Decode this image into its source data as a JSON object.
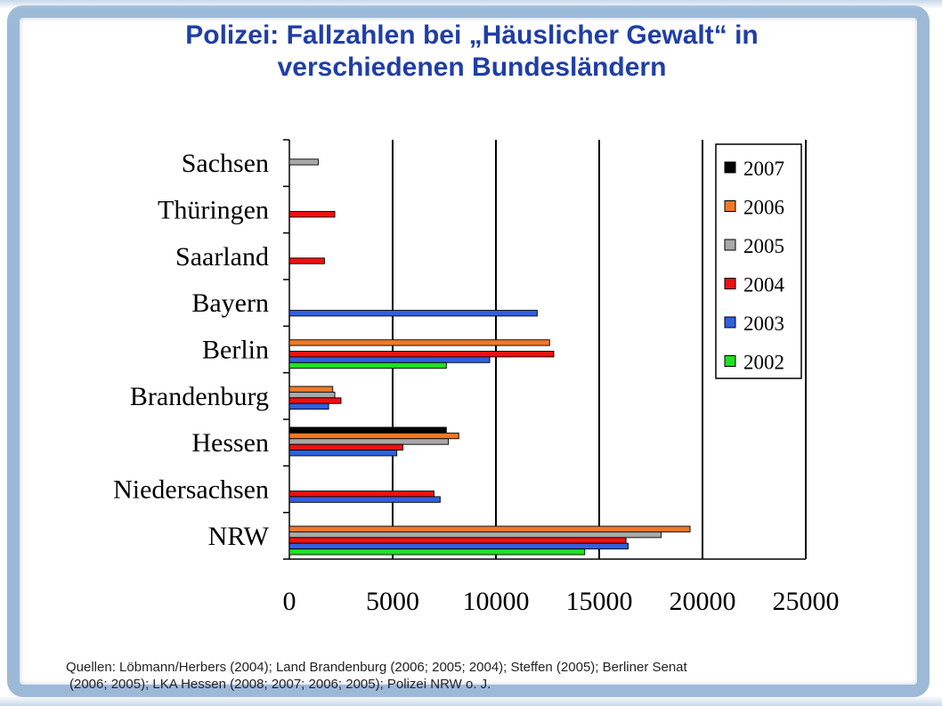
{
  "slide": {
    "title_line1": "Polizei: Fallzahlen bei „Häuslicher Gewalt“ in",
    "title_line2": "verschiedenen Bundesländern",
    "source_line1": "Quellen: Löbmann/Herbers (2004); Land Brandenburg (2006; 2005; 2004); Steffen (2005); Berliner Senat",
    "source_line2": "(2006; 2005); LKA Hessen (2008; 2007; 2006; 2005); Polizei NRW o. J."
  },
  "chart_data": {
    "type": "bar",
    "orientation": "horizontal",
    "title": "",
    "xlabel": "",
    "ylabel": "",
    "xlim": [
      0,
      25000
    ],
    "x_ticks": [
      0,
      5000,
      10000,
      15000,
      20000,
      25000
    ],
    "x_tick_labels": [
      "0",
      "5000",
      "10000",
      "15000",
      "20000",
      "25000"
    ],
    "grid": "vertical major gridlines",
    "legend_position": "top-right",
    "categories": [
      "Sachsen",
      "Thüringen",
      "Saarland",
      "Bayern",
      "Berlin",
      "Brandenburg",
      "Hessen",
      "Niedersachsen",
      "NRW"
    ],
    "series": [
      {
        "name": "2007",
        "color": "#000000",
        "values": [
          null,
          null,
          null,
          null,
          null,
          null,
          7600,
          null,
          null
        ]
      },
      {
        "name": "2006",
        "color": "#f07828",
        "values": [
          null,
          null,
          null,
          null,
          12600,
          2100,
          8200,
          null,
          19400
        ]
      },
      {
        "name": "2005",
        "color": "#a8a8a8",
        "values": [
          1400,
          null,
          null,
          null,
          null,
          2200,
          7700,
          null,
          18000
        ]
      },
      {
        "name": "2004",
        "color": "#f01010",
        "values": [
          null,
          2200,
          1700,
          null,
          12800,
          2500,
          5500,
          7000,
          16300
        ]
      },
      {
        "name": "2003",
        "color": "#3060e0",
        "values": [
          null,
          null,
          null,
          12000,
          9700,
          1900,
          5200,
          7300,
          16400
        ]
      },
      {
        "name": "2002",
        "color": "#20e020",
        "values": [
          null,
          null,
          null,
          null,
          7600,
          null,
          null,
          null,
          14300
        ]
      }
    ]
  }
}
